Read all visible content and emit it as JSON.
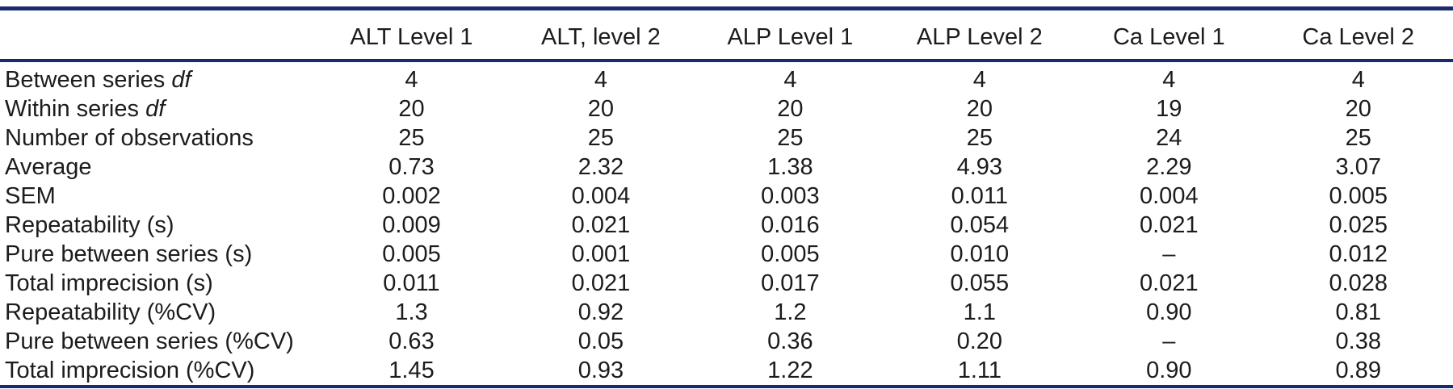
{
  "theme": {
    "rule": "#1b2a6b",
    "text": "#1c1c1c"
  },
  "table": {
    "headers": [
      "ALT Level 1",
      "ALT, level 2",
      "ALP Level 1",
      "ALP Level 2",
      "Ca Level 1",
      "Ca Level 2"
    ],
    "rows": [
      {
        "label": "Between series",
        "label_italic": "df",
        "values": [
          "4",
          "4",
          "4",
          "4",
          "4",
          "4"
        ]
      },
      {
        "label": "Within series",
        "label_italic": "df",
        "values": [
          "20",
          "20",
          "20",
          "20",
          "19",
          "20"
        ]
      },
      {
        "label": "Number of observations",
        "values": [
          "25",
          "25",
          "25",
          "25",
          "24",
          "25"
        ]
      },
      {
        "label": "Average",
        "values": [
          "0.73",
          "2.32",
          "1.38",
          "4.93",
          "2.29",
          "3.07"
        ]
      },
      {
        "label": "SEM",
        "values": [
          "0.002",
          "0.004",
          "0.003",
          "0.011",
          "0.004",
          "0.005"
        ]
      },
      {
        "label": "Repeatability (s)",
        "values": [
          "0.009",
          "0.021",
          "0.016",
          "0.054",
          "0.021",
          "0.025"
        ]
      },
      {
        "label": "Pure between series (s)",
        "values": [
          "0.005",
          "0.001",
          "0.005",
          "0.010",
          "–",
          "0.012"
        ]
      },
      {
        "label": "Total imprecision (s)",
        "values": [
          "0.011",
          "0.021",
          "0.017",
          "0.055",
          "0.021",
          "0.028"
        ]
      },
      {
        "label": "Repeatability (%CV)",
        "values": [
          "1.3",
          "0.92",
          "1.2",
          "1.1",
          "0.90",
          "0.81"
        ]
      },
      {
        "label": "Pure between series (%CV)",
        "values": [
          "0.63",
          "0.05",
          "0.36",
          "0.20",
          "–",
          "0.38"
        ]
      },
      {
        "label": "Total imprecision (%CV)",
        "values": [
          "1.45",
          "0.93",
          "1.22",
          "1.11",
          "0.90",
          "0.89"
        ]
      }
    ]
  }
}
